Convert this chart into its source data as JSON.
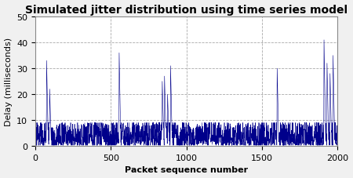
{
  "title": "Simulated jitter distribution using time series model",
  "xlabel": "Packet sequence number",
  "ylabel": "Delay (milliseconds)",
  "xlim": [
    0,
    2000
  ],
  "ylim": [
    0,
    50
  ],
  "xticks": [
    0,
    500,
    1000,
    1500,
    2000
  ],
  "yticks": [
    0,
    10,
    20,
    30,
    40,
    50
  ],
  "line_color": "#00008B",
  "plot_bg_color": "#ffffff",
  "fig_bg_color": "#f0f0f0",
  "grid_color": "#aaaaaa",
  "spike_locations": [
    75,
    95,
    555,
    840,
    855,
    875,
    895,
    1600,
    1910,
    1930,
    1950,
    1970
  ],
  "spike_heights": [
    33,
    22,
    36,
    25,
    27,
    20,
    31,
    30,
    41,
    32,
    28,
    35
  ],
  "base_mean": 4.5,
  "base_std": 1.2,
  "seed": 12,
  "n_packets": 2000,
  "title_fontsize": 10,
  "label_fontsize": 8,
  "tick_fontsize": 8
}
